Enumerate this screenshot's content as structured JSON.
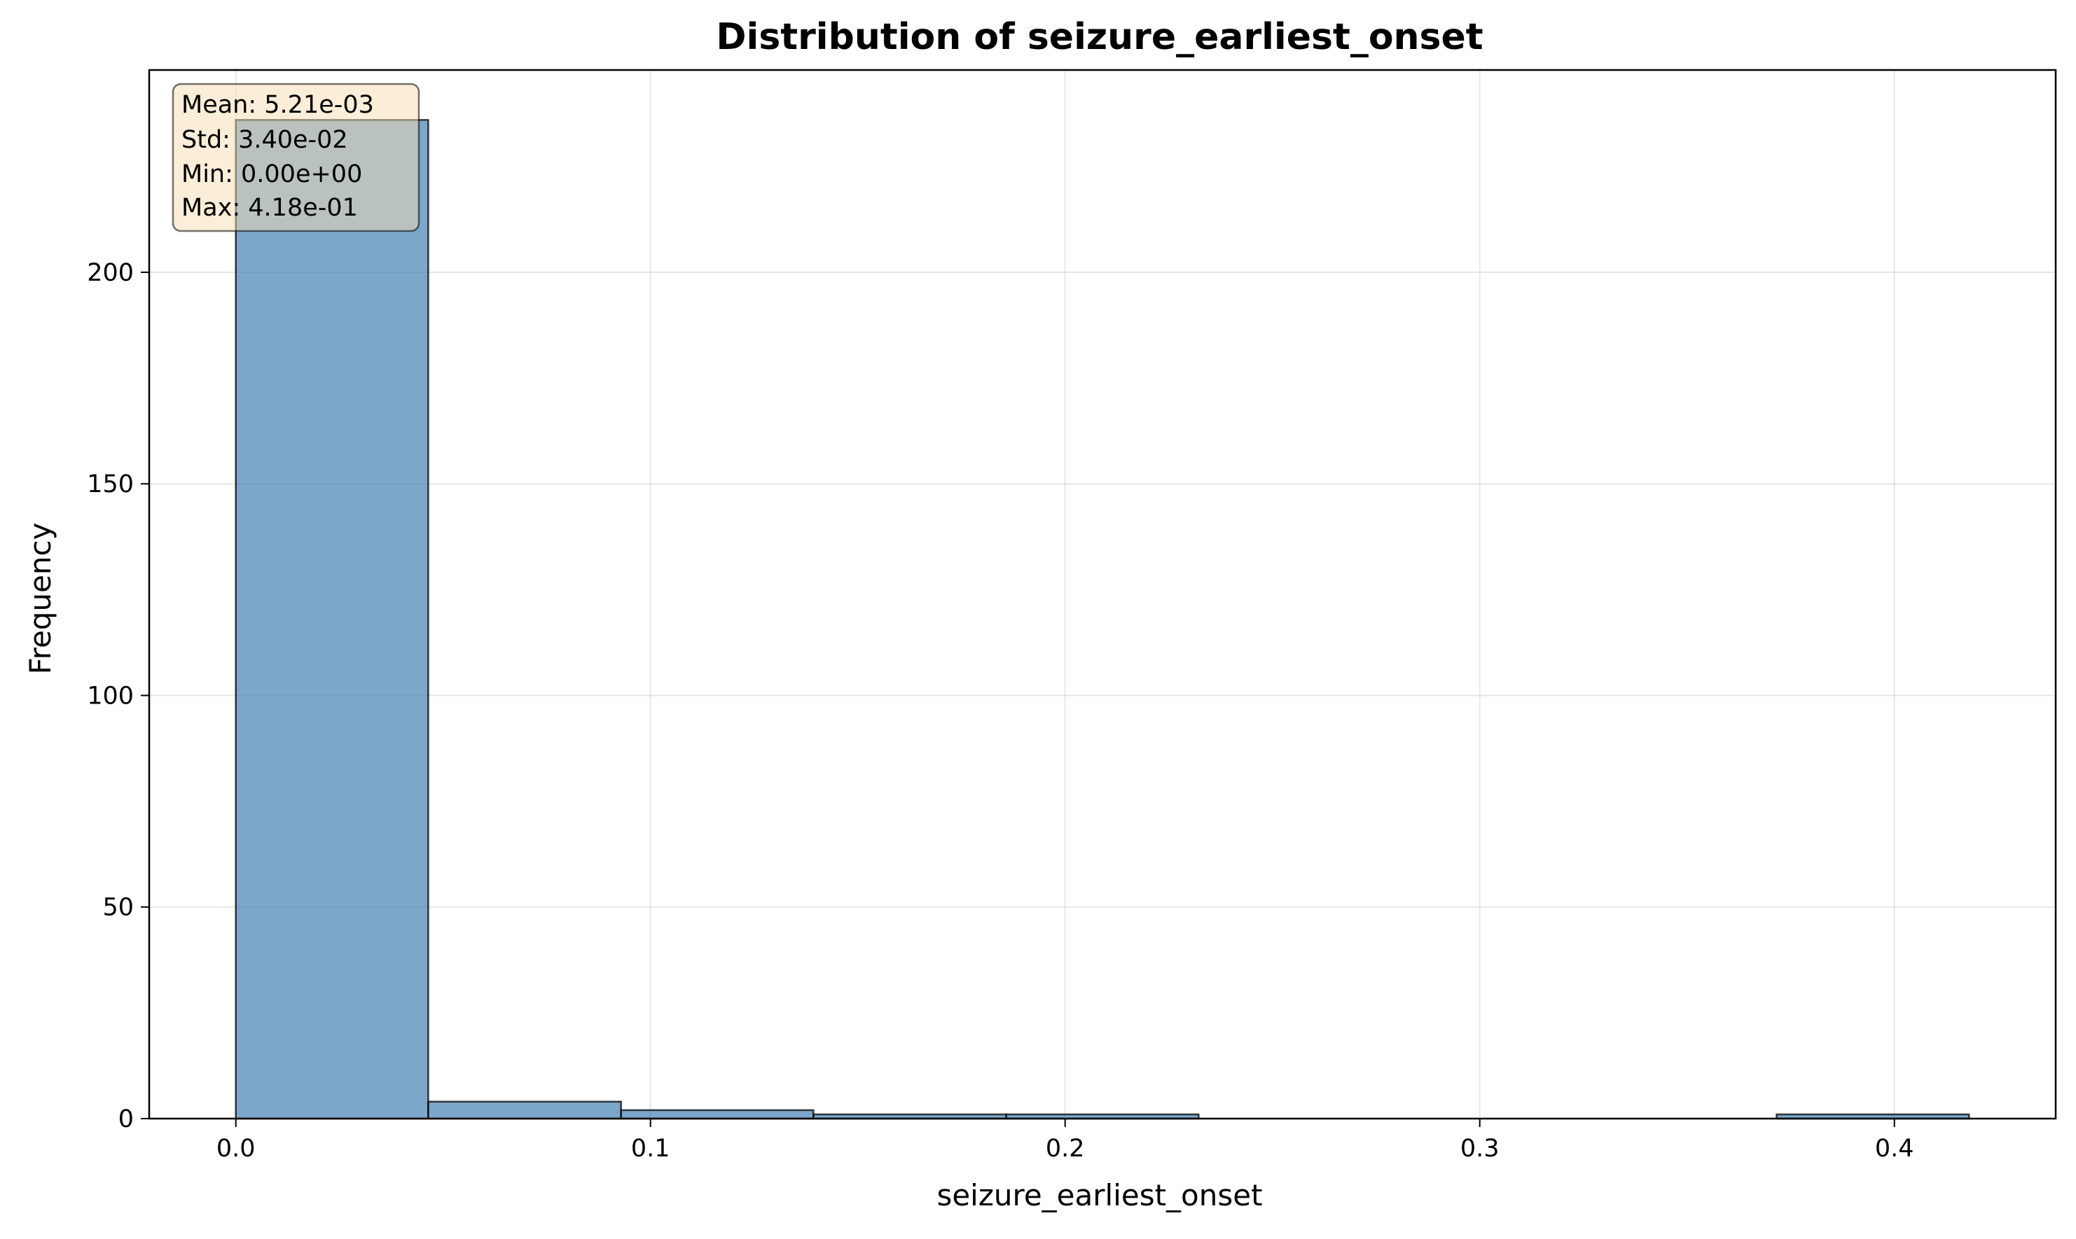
{
  "chart_data": {
    "type": "bar",
    "subtype": "histogram",
    "title": "Distribution of seizure_earliest_onset",
    "xlabel": "seizure_earliest_onset",
    "ylabel": "Frequency",
    "xlim": [
      -0.0209,
      0.4389
    ],
    "ylim": [
      0,
      247.8
    ],
    "x_ticks": [
      0.0,
      0.1,
      0.2,
      0.3,
      0.4
    ],
    "x_tick_labels": [
      "0.0",
      "0.1",
      "0.2",
      "0.3",
      "0.4"
    ],
    "y_ticks": [
      0,
      50,
      100,
      150,
      200
    ],
    "y_tick_labels": [
      "0",
      "50",
      "100",
      "150",
      "200"
    ],
    "bin_edges": [
      0.0,
      0.0464,
      0.0929,
      0.1393,
      0.1858,
      0.2322,
      0.2787,
      0.3251,
      0.3716,
      0.418
    ],
    "values": [
      236,
      4,
      2,
      1,
      1,
      0,
      0,
      0,
      1
    ],
    "grid": true,
    "bar_color": "#4682b4",
    "bar_edge_color": "#000000",
    "stats_box": {
      "lines": [
        "Mean: 5.21e-03",
        "Std: 3.40e-02",
        "Min: 0.00e+00",
        "Max: 4.18e-01"
      ],
      "placement": "top-left",
      "background": "#f5deb3"
    }
  }
}
